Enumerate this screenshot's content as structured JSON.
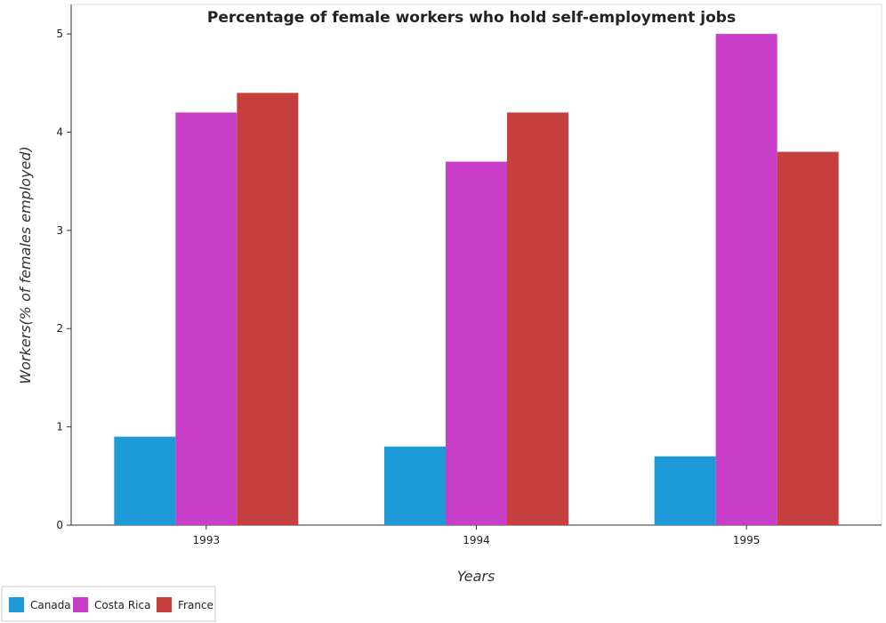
{
  "chart_data": {
    "type": "bar",
    "title": "Percentage of female workers who hold self-employment jobs",
    "xlabel": "Years",
    "ylabel": "Workers(% of females employed)",
    "categories": [
      "1993",
      "1994",
      "1995"
    ],
    "series": [
      {
        "name": "Canada",
        "color": "#1f9ad8",
        "values": [
          0.9,
          0.8,
          0.7
        ]
      },
      {
        "name": "Costa Rica",
        "color": "#c83ec8",
        "values": [
          4.2,
          3.7,
          5.0
        ]
      },
      {
        "name": "France",
        "color": "#c63f3f",
        "values": [
          4.4,
          4.2,
          3.8
        ]
      }
    ],
    "ylim": [
      0,
      5.3
    ],
    "yticks": [
      "0",
      "1",
      "2",
      "3",
      "4",
      "5"
    ],
    "grid": false,
    "legend_position": "bottom-left"
  }
}
